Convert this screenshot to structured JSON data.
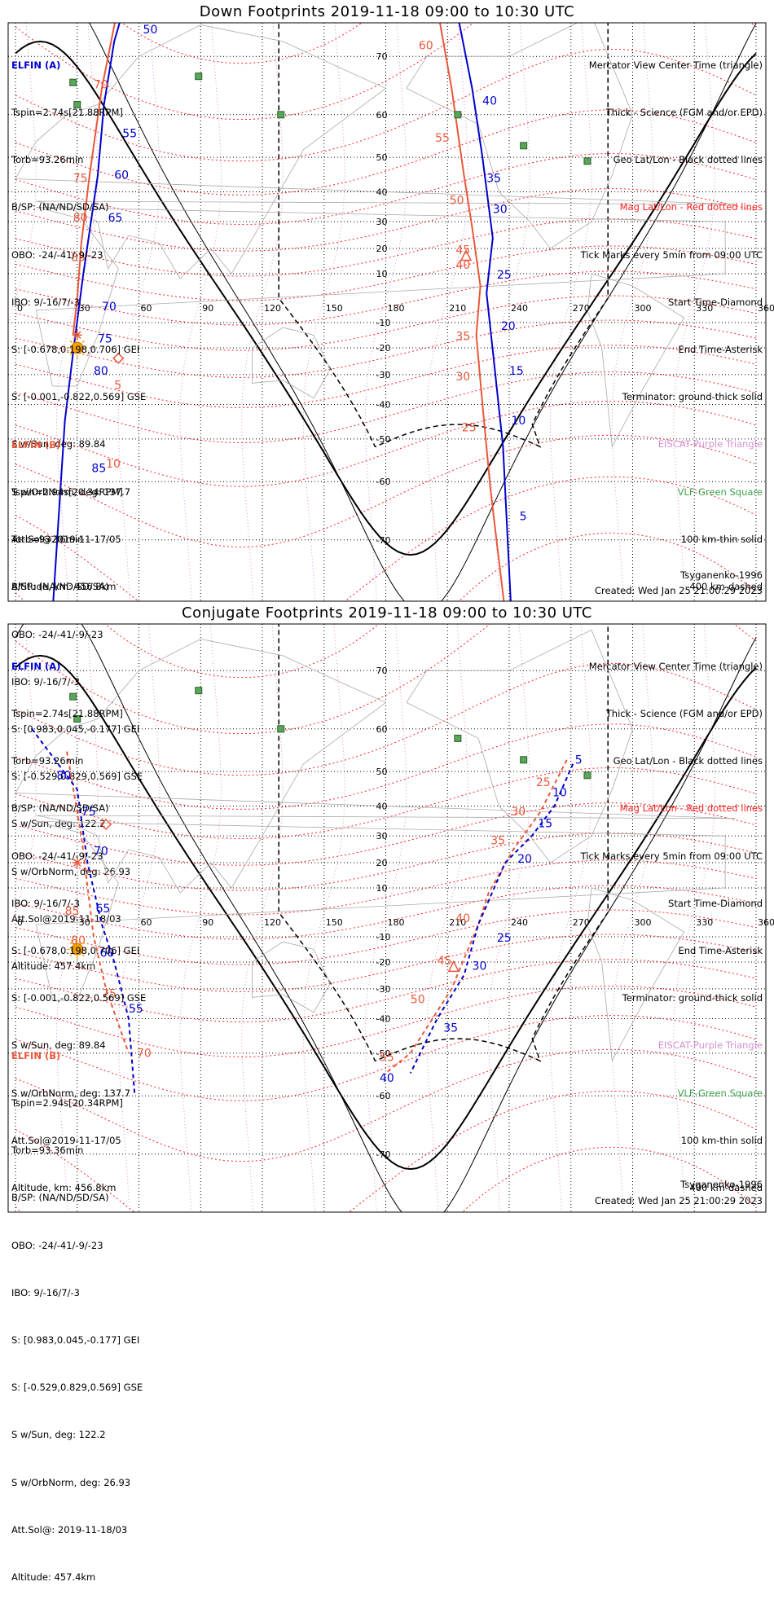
{
  "panels": [
    {
      "title": "Down Footprints 2019-11-18 09:00 to 10:30 UTC",
      "elfin_a": {
        "name": "ELFIN (A)",
        "lines": [
          "Tspin=2.74s[21.88RPM]",
          "Torb=93.26min",
          "B/SP: (NA/ND/SD/SA)",
          "OBO: -24/-41/-9/-23",
          "IBO: 9/-16/7/-3",
          "S: [-0.678,0.198,0.706] GEI",
          "S: [-0.001,-0.822,0.569] GSE",
          "S w/Sun, deg: 89.84",
          "S w/OrbNorm, deg: 137.7",
          "Att.Sol@2019-11-17/05",
          "Altitude, km: 456.8km"
        ]
      },
      "elfin_b": {
        "name": "ELFIN (B)",
        "lines": [
          "Tspin=2.94s[20.34RPM]",
          "Torb=93.36min",
          "B/SP: (NA/ND/SD/SA)",
          "OBO: -24/-41/-9/-23",
          "IBO: 9/-16/7/-3",
          "S: [0.983,0.045,-0.177] GEI",
          "S: [-0.529,0.829,0.569] GSE",
          "S w/Sun, deg: 122.2",
          "S w/OrbNorm, deg: 26.93",
          "Att.Sol@2019-11-18/03",
          "Altitude: 457.4km"
        ]
      },
      "legend": [
        "Mercator View Center Time (triangle)",
        "Thick - Science (FGM and/or EPD)",
        "Geo Lat/Lon - Black dotted lines",
        "Mag Lat/Lon - Red dotted lines",
        "Tick Marks every 5min from 09:00 UTC",
        "Start Time-Diamond",
        "End Time-Asterisk",
        "Terminator: ground-thick solid",
        "EISCAT-Purple Triangle",
        "VLF-Green Square",
        "100 km-thin solid",
        "400 km-dashed"
      ],
      "model": "Tsyganenko-1996",
      "created": "Created: Wed Jan 25 21:00:29 2023"
    },
    {
      "title": "Conjugate Footprints 2019-11-18 09:00 to 10:30 UTC",
      "elfin_a": {
        "name": "ELFIN (A)",
        "lines": [
          "Tspin=2.74s[21.88RPM]",
          "Torb=93.26min",
          "B/SP: (NA/ND/SD/SA)",
          "OBO: -24/-41/-9/-23",
          "IBO: 9/-16/7/-3",
          "S: [-0.678,0.198,0.706] GEI",
          "S: [-0.001,-0.822,0.569] GSE",
          "S w/Sun, deg: 89.84",
          "S w/OrbNorm, deg: 137.7",
          "Att.Sol@2019-11-17/05",
          "Altitude, km: 456.8km"
        ]
      },
      "elfin_b": {
        "name": "ELFIN (B)",
        "lines": [
          "Tspin=2.94s[20.34RPM]",
          "Torb=93.36min",
          "B/SP: (NA/ND/SD/SA)",
          "OBO: -24/-41/-9/-23",
          "IBO: 9/-16/7/-3",
          "S: [0.983,0.045,-0.177] GEI",
          "S: [-0.529,0.829,0.569] GSE",
          "S w/Sun, deg: 122.2",
          "S w/OrbNorm, deg: 26.93",
          "Att.Sol@: 2019-11-18/03",
          "Altitude: 457.4km"
        ]
      },
      "legend": [
        "Mercator View Center Time (triangle)",
        "Thick - Science (FGM and/or EPD)",
        "Geo Lat/Lon - Black dotted lines",
        "Mag Lat/Lon - Red dotted lines",
        "Tick Marks every 5min from 09:00 UTC",
        "Start Time-Diamond",
        "End Time-Asterisk",
        "Terminator: ground-thick solid",
        "EISCAT-Purple Triangle",
        "VLF-Green Square",
        "100 km-thin solid",
        "400 km-dashed"
      ],
      "model": "Tsyganenko-1996",
      "created": "Created: Wed Jan 25 21:00:29 2023"
    }
  ],
  "colors": {
    "elfin_a": "#0000cc",
    "elfin_b": "#e8583a",
    "mag_grid": "#ff2020",
    "geo_grid": "#000000",
    "eiscat": "#d48fd4",
    "vlf": "#5aa55a",
    "sun": "#f5a000",
    "coast": "#aaaaaa"
  },
  "chart_data": [
    {
      "type": "map",
      "projection": "mercator",
      "lon_ticks": [
        0,
        30,
        60,
        90,
        120,
        150,
        180,
        210,
        240,
        270,
        300,
        330,
        360
      ],
      "lat_ticks": [
        70,
        60,
        50,
        40,
        30,
        20,
        10,
        -10,
        -20,
        -30,
        -40,
        -50,
        -60,
        -70
      ],
      "vlf_stations": [
        [
          89,
          67
        ],
        [
          28,
          66
        ],
        [
          30,
          62
        ],
        [
          129,
          60
        ],
        [
          215,
          60
        ],
        [
          247,
          53
        ],
        [
          278,
          49
        ]
      ],
      "elfin_a_track": {
        "tick_labels": [
          "50",
          "55",
          "60",
          "65",
          "70",
          "75",
          "80",
          "85",
          "40",
          "35",
          "30",
          "25",
          "20",
          "15",
          "10",
          "5"
        ],
        "points": [
          [
            56,
            78
          ],
          [
            48,
            72
          ],
          [
            43,
            62
          ],
          [
            40,
            45
          ],
          [
            33,
            10
          ],
          [
            28,
            -22
          ],
          [
            24,
            -45
          ],
          [
            18,
            -78
          ],
          [
            212,
            78
          ],
          [
            222,
            65
          ],
          [
            227,
            50
          ],
          [
            232,
            24
          ],
          [
            229,
            2
          ],
          [
            233,
            -28
          ],
          [
            237,
            -52
          ],
          [
            241,
            -78
          ]
        ]
      },
      "elfin_b_track": {
        "tick_labels": [
          "70",
          "75",
          "80",
          "85",
          "5",
          "10",
          "60",
          "55",
          "50",
          "45",
          "40",
          "35",
          "30",
          "25"
        ],
        "points": [
          [
            52,
            78
          ],
          [
            42,
            65
          ],
          [
            36,
            45
          ],
          [
            32,
            22
          ],
          [
            30,
            0
          ],
          [
            28,
            -15
          ],
          [
            203,
            78
          ],
          [
            212,
            65
          ],
          [
            218,
            45
          ],
          [
            222,
            28
          ],
          [
            226,
            5
          ],
          [
            224,
            -15
          ],
          [
            227,
            -40
          ],
          [
            231,
            -62
          ],
          [
            238,
            -78
          ]
        ]
      },
      "labels": {
        "a_ticks": [
          [
            "50",
            62,
            73
          ],
          [
            "55",
            52,
            55
          ],
          [
            "60",
            48,
            44
          ],
          [
            "65",
            45,
            30
          ],
          [
            "70",
            42,
            -5
          ],
          [
            "75",
            40,
            -18
          ],
          [
            "80",
            38,
            -30
          ],
          [
            "85",
            37,
            -58
          ],
          [
            "40",
            227,
            62
          ],
          [
            "35",
            229,
            43
          ],
          [
            "30",
            232,
            33
          ],
          [
            "25",
            234,
            8
          ],
          [
            "20",
            236,
            -13
          ],
          [
            "15",
            240,
            -30
          ],
          [
            "10",
            241,
            -46
          ],
          [
            "5",
            245,
            -67
          ]
        ],
        "b_ticks": [
          [
            "70",
            38,
            65
          ],
          [
            "75",
            28,
            43
          ],
          [
            "80",
            28,
            30
          ],
          [
            "85",
            27,
            15
          ],
          [
            "5",
            48,
            -35
          ],
          [
            "10",
            44,
            -57
          ],
          [
            "60",
            196,
            71
          ],
          [
            "55",
            204,
            54
          ],
          [
            "50",
            211,
            36
          ],
          [
            "45",
            214,
            18
          ],
          [
            "40",
            214,
            12
          ],
          [
            "35",
            214,
            -17
          ],
          [
            "30",
            214,
            -32
          ],
          [
            "25",
            217,
            -48
          ]
        ]
      }
    },
    {
      "type": "map",
      "projection": "mercator",
      "lon_ticks": [
        0,
        30,
        60,
        90,
        120,
        150,
        180,
        210,
        240,
        270,
        300,
        330,
        360
      ],
      "lat_ticks": [
        70,
        60,
        50,
        40,
        30,
        20,
        10,
        -10,
        -20,
        -30,
        -40,
        -50,
        -60,
        -70
      ],
      "vlf_stations": [
        [
          89,
          67
        ],
        [
          28,
          66
        ],
        [
          30,
          62
        ],
        [
          129,
          60
        ],
        [
          215,
          58
        ],
        [
          247,
          53
        ],
        [
          278,
          49
        ]
      ],
      "elfin_a_track": {
        "tick_labels": [
          "80",
          "75",
          "70",
          "65",
          "60",
          "55",
          "5",
          "10",
          "15",
          "20",
          "25",
          "30",
          "35",
          "40"
        ],
        "points": [
          [
            8,
            60
          ],
          [
            30,
            45
          ],
          [
            35,
            20
          ],
          [
            42,
            -5
          ],
          [
            48,
            -20
          ],
          [
            55,
            -40
          ],
          [
            58,
            -60
          ],
          [
            271,
            52
          ],
          [
            262,
            40
          ],
          [
            251,
            30
          ],
          [
            238,
            20
          ],
          [
            225,
            -5
          ],
          [
            218,
            -25
          ],
          [
            205,
            -40
          ],
          [
            192,
            -55
          ]
        ]
      },
      "elfin_b_track": {
        "tick_labels": [
          "85",
          "80",
          "75",
          "70",
          "25",
          "30",
          "35",
          "40",
          "45",
          "50",
          "55"
        ],
        "points": [
          [
            25,
            55
          ],
          [
            32,
            30
          ],
          [
            38,
            -10
          ],
          [
            44,
            -30
          ],
          [
            55,
            -50
          ],
          [
            268,
            53
          ],
          [
            255,
            38
          ],
          [
            242,
            25
          ],
          [
            230,
            8
          ],
          [
            225,
            -5
          ],
          [
            212,
            -30
          ],
          [
            192,
            -50
          ],
          [
            180,
            -55
          ]
        ]
      },
      "labels": {
        "a_ticks": [
          [
            "80",
            20,
            48
          ],
          [
            "75",
            32,
            37
          ],
          [
            "70",
            38,
            23
          ],
          [
            "65",
            39,
            0
          ],
          [
            "60",
            41,
            -18
          ],
          [
            "55",
            55,
            -38
          ],
          [
            "5",
            272,
            52
          ],
          [
            "10",
            261,
            43
          ],
          [
            "15",
            254,
            33
          ],
          [
            "20",
            244,
            20
          ],
          [
            "25",
            234,
            -12
          ],
          [
            "30",
            222,
            -23
          ],
          [
            "35",
            208,
            -44
          ],
          [
            "40",
            177,
            -57
          ]
        ],
        "b_ticks": [
          [
            "85",
            24,
            -1
          ],
          [
            "80",
            27,
            -13
          ],
          [
            "75",
            42,
            -33
          ],
          [
            "70",
            59,
            -51
          ],
          [
            "25",
            253,
            46
          ],
          [
            "30",
            241,
            37
          ],
          [
            "35",
            231,
            27
          ],
          [
            "40",
            214,
            -4
          ],
          [
            "45",
            205,
            -21
          ],
          [
            "50",
            192,
            -35
          ],
          [
            "55",
            177,
            -52
          ]
        ]
      }
    }
  ]
}
